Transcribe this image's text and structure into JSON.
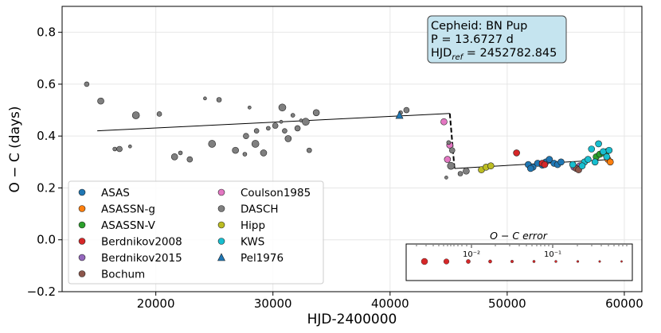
{
  "chart_data": {
    "type": "scatter",
    "xlabel": "HJD-2400000",
    "ylabel": "O − C (days)",
    "xlim": [
      12000,
      61500
    ],
    "ylim": [
      -0.2,
      0.9
    ],
    "xticks": [
      20000,
      30000,
      40000,
      50000,
      60000
    ],
    "yticks": [
      -0.2,
      0.0,
      0.2,
      0.4,
      0.6,
      0.8
    ],
    "xtick_labels": [
      "20000",
      "30000",
      "40000",
      "50000",
      "60000"
    ],
    "ytick_labels": [
      "−0.2",
      "0.0",
      "0.2",
      "0.4",
      "0.6",
      "0.8"
    ],
    "grid": true,
    "info_box": {
      "line1": "Cepheid: BN Pup",
      "line2": "P = 13.6727 d",
      "line3_prefix": "HJD",
      "line3_sub": "ref",
      "line3_suffix": " = 2452782.845",
      "bg_color": "#c5e4ef"
    },
    "fit_lines": [
      {
        "style": "solid",
        "points": [
          [
            15000,
            0.42
          ],
          [
            45100,
            0.487
          ]
        ]
      },
      {
        "style": "dashed",
        "points": [
          [
            45100,
            0.487
          ],
          [
            45500,
            0.275
          ]
        ]
      },
      {
        "style": "solid",
        "points": [
          [
            45500,
            0.275
          ],
          [
            59000,
            0.31
          ]
        ]
      }
    ],
    "series": [
      {
        "name": "ASAS",
        "color": "#1f77b4",
        "marker": "circle",
        "points": [
          [
            51800,
            0.29
          ],
          [
            52200,
            0.28
          ],
          [
            52600,
            0.295
          ],
          [
            53000,
            0.288
          ],
          [
            53300,
            0.3
          ],
          [
            53600,
            0.31
          ],
          [
            54000,
            0.295
          ],
          [
            54300,
            0.29
          ],
          [
            54600,
            0.3
          ],
          [
            52000,
            0.275
          ]
        ]
      },
      {
        "name": "ASASSN-g",
        "color": "#ff7f0e",
        "marker": "circle",
        "points": [
          [
            58600,
            0.31
          ],
          [
            58800,
            0.3
          ]
        ]
      },
      {
        "name": "ASASSN-V",
        "color": "#2ca02c",
        "marker": "circle",
        "points": [
          [
            57600,
            0.32
          ],
          [
            57900,
            0.33
          ],
          [
            58200,
            0.335
          ],
          [
            58500,
            0.34
          ]
        ]
      },
      {
        "name": "Berdnikov2008",
        "color": "#d62728",
        "marker": "circle",
        "points": [
          [
            50800,
            0.335
          ],
          [
            53000,
            0.295
          ],
          [
            53200,
            0.29
          ]
        ]
      },
      {
        "name": "Berdnikov2015",
        "color": "#9467bd",
        "marker": "circle",
        "points": [
          [
            55700,
            0.28
          ],
          [
            56200,
            0.285
          ]
        ]
      },
      {
        "name": "Bochum",
        "color": "#8c564b",
        "marker": "circle",
        "points": [
          [
            55900,
            0.275
          ],
          [
            56100,
            0.27
          ]
        ]
      },
      {
        "name": "Coulson1985",
        "color": "#e377c2",
        "marker": "circle",
        "points": [
          [
            44600,
            0.455
          ],
          [
            45100,
            0.365
          ],
          [
            44900,
            0.31
          ]
        ]
      },
      {
        "name": "DASCH",
        "color": "#7f7f7f",
        "marker": "circle",
        "points": [
          [
            14100,
            0.6
          ],
          [
            15300,
            0.535
          ],
          [
            16500,
            0.35
          ],
          [
            16900,
            0.35
          ],
          [
            17800,
            0.36
          ],
          [
            18300,
            0.48
          ],
          [
            20300,
            0.485
          ],
          [
            21600,
            0.32
          ],
          [
            22100,
            0.335
          ],
          [
            22900,
            0.31
          ],
          [
            24200,
            0.545
          ],
          [
            24800,
            0.37
          ],
          [
            25400,
            0.54
          ],
          [
            26800,
            0.345
          ],
          [
            27600,
            0.33
          ],
          [
            27700,
            0.4
          ],
          [
            28000,
            0.51
          ],
          [
            28500,
            0.37
          ],
          [
            28600,
            0.42
          ],
          [
            29200,
            0.335
          ],
          [
            29600,
            0.43
          ],
          [
            30200,
            0.44
          ],
          [
            30700,
            0.455
          ],
          [
            30800,
            0.51
          ],
          [
            31000,
            0.42
          ],
          [
            31300,
            0.39
          ],
          [
            31700,
            0.48
          ],
          [
            32100,
            0.43
          ],
          [
            32400,
            0.46
          ],
          [
            32800,
            0.455
          ],
          [
            33100,
            0.345
          ],
          [
            33700,
            0.49
          ],
          [
            40900,
            0.49
          ],
          [
            41400,
            0.5
          ],
          [
            44800,
            0.24
          ],
          [
            45200,
            0.285
          ],
          [
            46000,
            0.255
          ],
          [
            46500,
            0.265
          ],
          [
            45000,
            0.375
          ],
          [
            45300,
            0.345
          ]
        ]
      },
      {
        "name": "Hipp",
        "color": "#bcbd22",
        "marker": "circle",
        "points": [
          [
            47800,
            0.27
          ],
          [
            48200,
            0.28
          ],
          [
            48600,
            0.285
          ]
        ]
      },
      {
        "name": "KWS",
        "color": "#17becf",
        "marker": "circle",
        "points": [
          [
            55600,
            0.29
          ],
          [
            56600,
            0.3
          ],
          [
            56900,
            0.31
          ],
          [
            57200,
            0.35
          ],
          [
            57500,
            0.3
          ],
          [
            57800,
            0.37
          ],
          [
            58200,
            0.34
          ],
          [
            58500,
            0.32
          ],
          [
            58700,
            0.345
          ],
          [
            56400,
            0.285
          ]
        ]
      },
      {
        "name": "Pel1976",
        "color": "#1f77b4",
        "marker": "triangle",
        "points": [
          [
            40800,
            0.48
          ]
        ]
      }
    ],
    "legend": {
      "location": "lower-left",
      "labels": [
        "ASAS",
        "ASASSN-g",
        "ASASSN-V",
        "Berdnikov2008",
        "Berdnikov2015",
        "Bochum",
        "Coulson1985",
        "DASCH",
        "Hipp",
        "KWS",
        "Pel1976"
      ]
    },
    "error_scale": {
      "title": "O − C error",
      "major_tick_labels": [
        "10⁻²",
        "10⁻¹"
      ],
      "marker_color": "#d62728",
      "marker_count": 10
    }
  }
}
